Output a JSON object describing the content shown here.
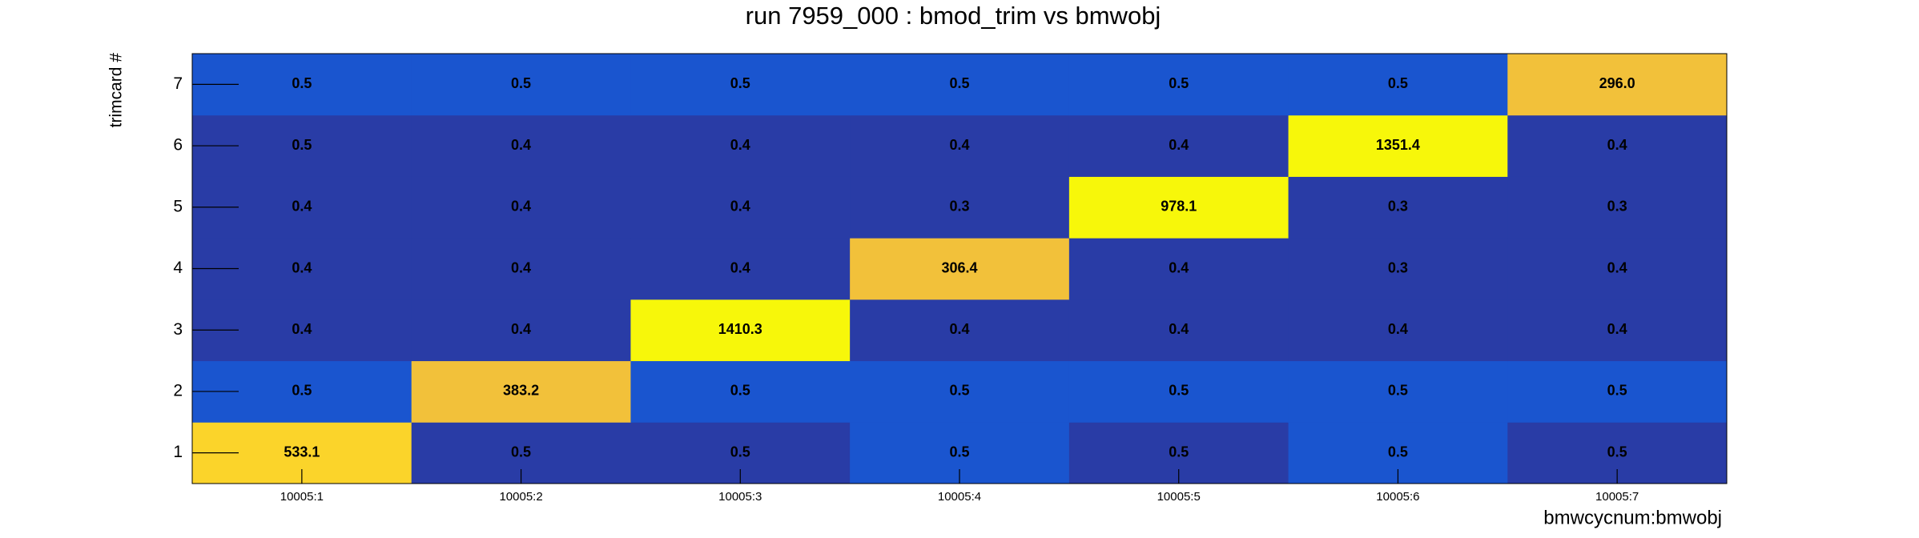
{
  "chart_data": {
    "type": "heatmap",
    "title": "run 7959_000 : bmod_trim vs bmwobj",
    "x_label": "bmwcycnum:bmwobj",
    "y_label": "trimcard #",
    "x_categories": [
      "10005:1",
      "10005:2",
      "10005:3",
      "10005:4",
      "10005:5",
      "10005:6",
      "10005:7"
    ],
    "y_categories": [
      "1",
      "2",
      "3",
      "4",
      "5",
      "6",
      "7"
    ],
    "values": [
      [
        533.1,
        0.5,
        0.5,
        0.5,
        0.5,
        0.5,
        0.5
      ],
      [
        0.5,
        383.2,
        0.5,
        0.5,
        0.5,
        0.5,
        0.5
      ],
      [
        0.4,
        0.4,
        1410.3,
        0.4,
        0.4,
        0.4,
        0.4
      ],
      [
        0.4,
        0.4,
        0.4,
        306.4,
        0.4,
        0.3,
        0.4
      ],
      [
        0.4,
        0.4,
        0.4,
        0.3,
        978.1,
        0.3,
        0.3
      ],
      [
        0.5,
        0.4,
        0.4,
        0.4,
        0.4,
        1351.4,
        0.4
      ],
      [
        0.5,
        0.5,
        0.5,
        0.5,
        0.5,
        0.5,
        296
      ]
    ],
    "value_labels": [
      [
        "533.1",
        "0.5",
        "0.5",
        "0.5",
        "0.5",
        "0.5",
        "0.5"
      ],
      [
        "0.5",
        "383.2",
        "0.5",
        "0.5",
        "0.5",
        "0.5",
        "0.5"
      ],
      [
        "0.4",
        "0.4",
        "1410.3",
        "0.4",
        "0.4",
        "0.4",
        "0.4"
      ],
      [
        "0.4",
        "0.4",
        "0.4",
        "306.4",
        "0.4",
        "0.3",
        "0.4"
      ],
      [
        "0.4",
        "0.4",
        "0.4",
        "0.3",
        "978.1",
        "0.3",
        "0.3"
      ],
      [
        "0.5",
        "0.4",
        "0.4",
        "0.4",
        "0.4",
        "1351.4",
        "0.4"
      ],
      [
        "0.5",
        "0.5",
        "0.5",
        "0.5",
        "0.5",
        "0.5",
        "296.0"
      ]
    ],
    "cell_colors": [
      [
        "#fbd42a",
        "#293ca6",
        "#293ca6",
        "#1a55cf",
        "#293ca6",
        "#1a55cf",
        "#293ca6"
      ],
      [
        "#1a55cf",
        "#f2c13a",
        "#1a55cf",
        "#1a55cf",
        "#1a55cf",
        "#1a55cf",
        "#1a55cf"
      ],
      [
        "#293ca6",
        "#293ca6",
        "#f7f70a",
        "#293ca6",
        "#293ca6",
        "#293ca6",
        "#293ca6"
      ],
      [
        "#293ca6",
        "#293ca6",
        "#293ca6",
        "#f2c13a",
        "#293ca6",
        "#293ca6",
        "#293ca6"
      ],
      [
        "#293ca6",
        "#293ca6",
        "#293ca6",
        "#293ca6",
        "#f7f70a",
        "#293ca6",
        "#293ca6"
      ],
      [
        "#293ca6",
        "#293ca6",
        "#293ca6",
        "#293ca6",
        "#293ca6",
        "#f7f70a",
        "#293ca6"
      ],
      [
        "#1a55cf",
        "#1a55cf",
        "#1a55cf",
        "#1a55cf",
        "#1a55cf",
        "#1a55cf",
        "#f2c13a"
      ]
    ]
  }
}
